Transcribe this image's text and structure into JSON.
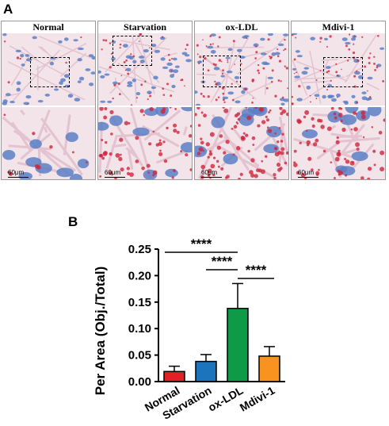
{
  "panel_a": {
    "letter": "A",
    "conditions": [
      {
        "label": "Normal",
        "scale": "60μm"
      },
      {
        "label": "Starvation",
        "scale": "60μm"
      },
      {
        "label": "ox-LDL",
        "scale": "60μm"
      },
      {
        "label": "Mdivi-1",
        "scale": "60μm"
      }
    ]
  },
  "panel_b": {
    "letter": "B"
  },
  "chart_data": {
    "type": "bar",
    "categories": [
      "Normal",
      "Starvation",
      "ox-LDL",
      "Mdivi-1"
    ],
    "values": [
      0.019,
      0.038,
      0.138,
      0.048
    ],
    "errors": [
      0.01,
      0.013,
      0.047,
      0.018
    ],
    "colors": [
      "#e41f26",
      "#1c75bc",
      "#0f9a48",
      "#f7931e"
    ],
    "ylabel": "Per Area (Obj./Total)",
    "ylim": [
      0,
      0.25
    ],
    "yticks": [
      "0.00",
      "0.05",
      "0.10",
      "0.15",
      "0.20",
      "0.25"
    ],
    "significance": [
      {
        "from": "Normal",
        "to": "ox-LDL",
        "label": "****"
      },
      {
        "from": "Starvation",
        "to": "ox-LDL",
        "label": "****"
      },
      {
        "from": "ox-LDL",
        "to": "Mdivi-1",
        "label": "****"
      }
    ]
  }
}
